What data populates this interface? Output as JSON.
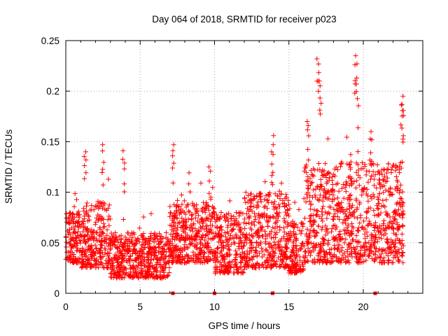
{
  "chart_data": {
    "type": "scatter",
    "title": "Day 064 of 2018, SRMTID for receiver p023",
    "xlabel": "GPS time / hours",
    "ylabel": "SRMTID / TECUs",
    "xlim": [
      0,
      24
    ],
    "ylim": [
      0,
      0.25
    ],
    "xticks": [
      0,
      5,
      10,
      15,
      20
    ],
    "xtick_labels": [
      "0",
      "5",
      "10",
      "15",
      "20"
    ],
    "yticks": [
      0,
      0.05,
      0.1,
      0.15,
      0.2,
      0.25
    ],
    "ytick_labels": [
      "0",
      "0.05",
      "0.1",
      "0.15",
      "0.2",
      "0.25"
    ],
    "grid": true,
    "marker": "+",
    "series": [
      {
        "name": "SRMTID",
        "color": "#ff0000",
        "x_range": [
          0.0,
          22.7
        ],
        "segments": [
          {
            "x": [
              0.0,
              1.0
            ],
            "y_typical": [
              0.03,
              0.08
            ]
          },
          {
            "x": [
              1.0,
              3.0
            ],
            "y_typical": [
              0.025,
              0.09
            ]
          },
          {
            "x": [
              3.0,
              7.0
            ],
            "y_typical": [
              0.015,
              0.06
            ]
          },
          {
            "x": [
              7.0,
              10.0
            ],
            "y_typical": [
              0.03,
              0.09
            ]
          },
          {
            "x": [
              10.0,
              12.0
            ],
            "y_typical": [
              0.02,
              0.08
            ]
          },
          {
            "x": [
              12.0,
              15.0
            ],
            "y_typical": [
              0.025,
              0.1
            ]
          },
          {
            "x": [
              15.0,
              16.0
            ],
            "y_typical": [
              0.02,
              0.07
            ]
          },
          {
            "x": [
              16.0,
              19.0
            ],
            "y_typical": [
              0.03,
              0.13
            ]
          },
          {
            "x": [
              19.0,
              22.7
            ],
            "y_typical": [
              0.03,
              0.13
            ]
          }
        ],
        "peaks": [
          {
            "x": 1.3,
            "y": 0.14
          },
          {
            "x": 2.5,
            "y": 0.147
          },
          {
            "x": 3.9,
            "y": 0.141
          },
          {
            "x": 7.2,
            "y": 0.147
          },
          {
            "x": 9.7,
            "y": 0.125
          },
          {
            "x": 13.9,
            "y": 0.156
          },
          {
            "x": 16.3,
            "y": 0.17
          },
          {
            "x": 16.95,
            "y": 0.232
          },
          {
            "x": 17.1,
            "y": 0.21
          },
          {
            "x": 19.5,
            "y": 0.235
          },
          {
            "x": 19.6,
            "y": 0.213
          },
          {
            "x": 20.5,
            "y": 0.16
          },
          {
            "x": 22.6,
            "y": 0.195
          },
          {
            "x": 22.65,
            "y": 0.187
          }
        ],
        "zero_points": [
          7.2,
          10.0,
          13.9,
          20.8
        ]
      }
    ]
  }
}
